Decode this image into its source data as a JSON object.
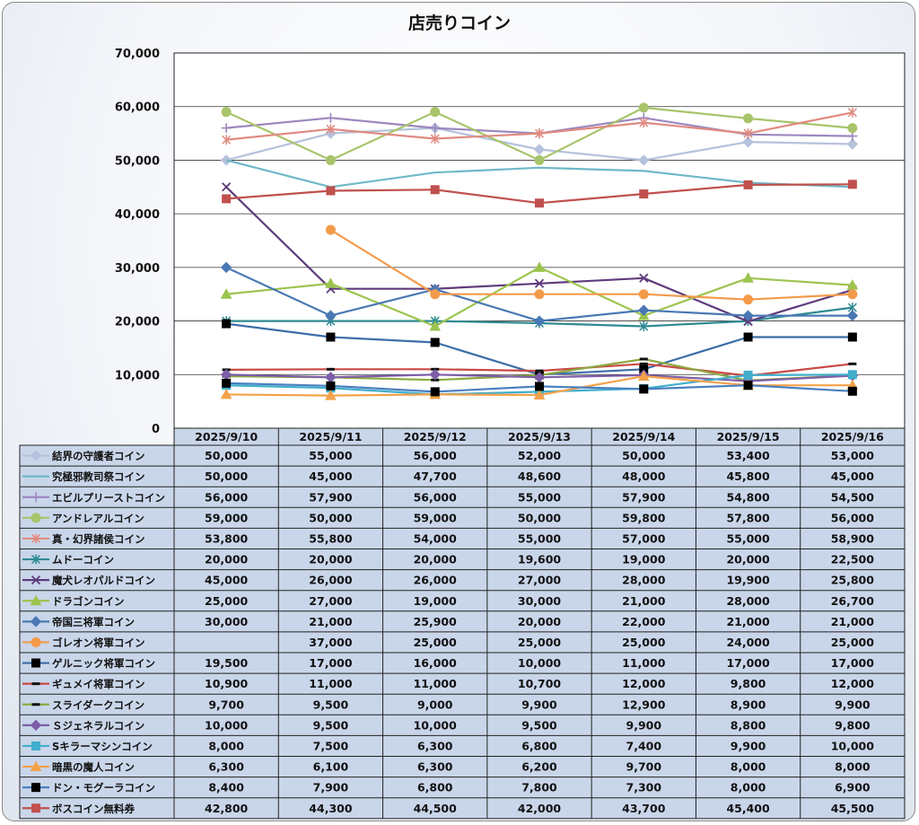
{
  "chart_data": {
    "type": "line",
    "title": "店売りコイン",
    "ylim": [
      0,
      70000
    ],
    "y_ticks": [
      "0",
      "10,000",
      "20,000",
      "30,000",
      "40,000",
      "50,000",
      "60,000",
      "70,000"
    ],
    "grid": true,
    "categories": [
      "2025/9/10",
      "2025/9/11",
      "2025/9/12",
      "2025/9/13",
      "2025/9/14",
      "2025/9/15",
      "2025/9/16"
    ],
    "series": [
      {
        "name": "結界の守護者コイン",
        "color": "#b4c2dc",
        "marker": "diamond",
        "values": [
          50000,
          55000,
          56000,
          52000,
          50000,
          53400,
          53000
        ],
        "labels": [
          "50,000",
          "55,000",
          "56,000",
          "52,000",
          "50,000",
          "53,400",
          "53,000"
        ]
      },
      {
        "name": "究極邪教司祭コイン",
        "color": "#6fb8c8",
        "marker": "none",
        "values": [
          50000,
          45000,
          47700,
          48600,
          48000,
          45800,
          45000
        ],
        "labels": [
          "50,000",
          "45,000",
          "47,700",
          "48,600",
          "48,000",
          "45,800",
          "45,000"
        ]
      },
      {
        "name": "エビルプリーストコイン",
        "color": "#9c88be",
        "marker": "plus",
        "values": [
          56000,
          57900,
          56000,
          55000,
          57900,
          54800,
          54500
        ],
        "labels": [
          "56,000",
          "57,900",
          "56,000",
          "55,000",
          "57,900",
          "54,800",
          "54,500"
        ]
      },
      {
        "name": "アンドレアルコイン",
        "color": "#a8c46a",
        "marker": "circle",
        "values": [
          59000,
          50000,
          59000,
          50000,
          59800,
          57800,
          56000
        ],
        "labels": [
          "59,000",
          "50,000",
          "59,000",
          "50,000",
          "59,800",
          "57,800",
          "56,000"
        ]
      },
      {
        "name": "真・幻界諸侯コイン",
        "color": "#e08a80",
        "marker": "star",
        "values": [
          53800,
          55800,
          54000,
          55000,
          57000,
          55000,
          58900
        ],
        "labels": [
          "53,800",
          "55,800",
          "54,000",
          "55,000",
          "57,000",
          "55,000",
          "58,900"
        ]
      },
      {
        "name": "ムドーコイン",
        "color": "#2e8a92",
        "marker": "star",
        "values": [
          20000,
          20000,
          20000,
          19600,
          19000,
          20000,
          22500
        ],
        "labels": [
          "20,000",
          "20,000",
          "20,000",
          "19,600",
          "19,000",
          "20,000",
          "22,500"
        ]
      },
      {
        "name": "魔犬レオパルドコイン",
        "color": "#5e3c7c",
        "marker": "x",
        "values": [
          45000,
          26000,
          26000,
          27000,
          28000,
          19900,
          25800
        ],
        "labels": [
          "45,000",
          "26,000",
          "26,000",
          "27,000",
          "28,000",
          "19,900",
          "25,800"
        ]
      },
      {
        "name": "ドラゴンコイン",
        "color": "#9cc44e",
        "marker": "triangle",
        "values": [
          25000,
          27000,
          19000,
          30000,
          21000,
          28000,
          26700
        ],
        "labels": [
          "25,000",
          "27,000",
          "19,000",
          "30,000",
          "21,000",
          "28,000",
          "26,700"
        ]
      },
      {
        "name": "帝国三将軍コイン",
        "color": "#4a78b4",
        "marker": "diamond",
        "values": [
          30000,
          21000,
          25900,
          20000,
          22000,
          21000,
          21000
        ],
        "labels": [
          "30,000",
          "21,000",
          "25,900",
          "20,000",
          "22,000",
          "21,000",
          "21,000"
        ]
      },
      {
        "name": "ゴレオン将軍コイン",
        "color": "#f39a4a",
        "marker": "circle",
        "values": [
          null,
          37000,
          25000,
          25000,
          25000,
          24000,
          25000
        ],
        "labels": [
          "",
          "37,000",
          "25,000",
          "25,000",
          "25,000",
          "24,000",
          "25,000"
        ]
      },
      {
        "name": "ゲルニック将軍コイン",
        "color": "#3c6ea8",
        "marker": "square",
        "values": [
          19500,
          17000,
          16000,
          10000,
          11000,
          17000,
          17000
        ],
        "labels": [
          "19,500",
          "17,000",
          "16,000",
          "10,000",
          "11,000",
          "17,000",
          "17,000"
        ]
      },
      {
        "name": "ギュメイ将軍コイン",
        "color": "#c84a44",
        "marker": "dash",
        "values": [
          10900,
          11000,
          11000,
          10700,
          12000,
          9800,
          12000
        ],
        "labels": [
          "10,900",
          "11,000",
          "11,000",
          "10,700",
          "12,000",
          "9,800",
          "12,000"
        ]
      },
      {
        "name": "スライダークコイン",
        "color": "#8caa40",
        "marker": "dash",
        "values": [
          9700,
          9500,
          9000,
          9900,
          12900,
          8900,
          9900
        ],
        "labels": [
          "9,700",
          "9,500",
          "9,000",
          "9,900",
          "12,900",
          "8,900",
          "9,900"
        ]
      },
      {
        "name": "Ｓジェネラルコイン",
        "color": "#7c5ea8",
        "marker": "diamond",
        "values": [
          10000,
          9500,
          10000,
          9500,
          9900,
          8800,
          9800
        ],
        "labels": [
          "10,000",
          "9,500",
          "10,000",
          "9,500",
          "9,900",
          "8,800",
          "9,800"
        ]
      },
      {
        "name": "Sキラーマシンコイン",
        "color": "#40aecc",
        "marker": "square",
        "values": [
          8000,
          7500,
          6300,
          6800,
          7400,
          9900,
          10000
        ],
        "labels": [
          "8,000",
          "7,500",
          "6,300",
          "6,800",
          "7,400",
          "9,900",
          "10,000"
        ]
      },
      {
        "name": "暗黒の魔人コイン",
        "color": "#f3a24a",
        "marker": "triangle",
        "values": [
          6300,
          6100,
          6300,
          6200,
          9700,
          8000,
          8000
        ],
        "labels": [
          "6,300",
          "6,100",
          "6,300",
          "6,200",
          "9,700",
          "8,000",
          "8,000"
        ]
      },
      {
        "name": "ドン・モグーラコイン",
        "color": "#4a80c0",
        "marker": "square",
        "values": [
          8400,
          7900,
          6800,
          7800,
          7300,
          8000,
          6900
        ],
        "labels": [
          "8,400",
          "7,900",
          "6,800",
          "7,800",
          "7,300",
          "8,000",
          "6,900"
        ]
      },
      {
        "name": "ボスコイン無料券",
        "color": "#c0504d",
        "marker": "square",
        "values": [
          42800,
          44300,
          44500,
          42000,
          43700,
          45400,
          45500
        ],
        "labels": [
          "42,800",
          "44,300",
          "44,500",
          "42,000",
          "43,700",
          "45,400",
          "45,500"
        ]
      }
    ]
  }
}
